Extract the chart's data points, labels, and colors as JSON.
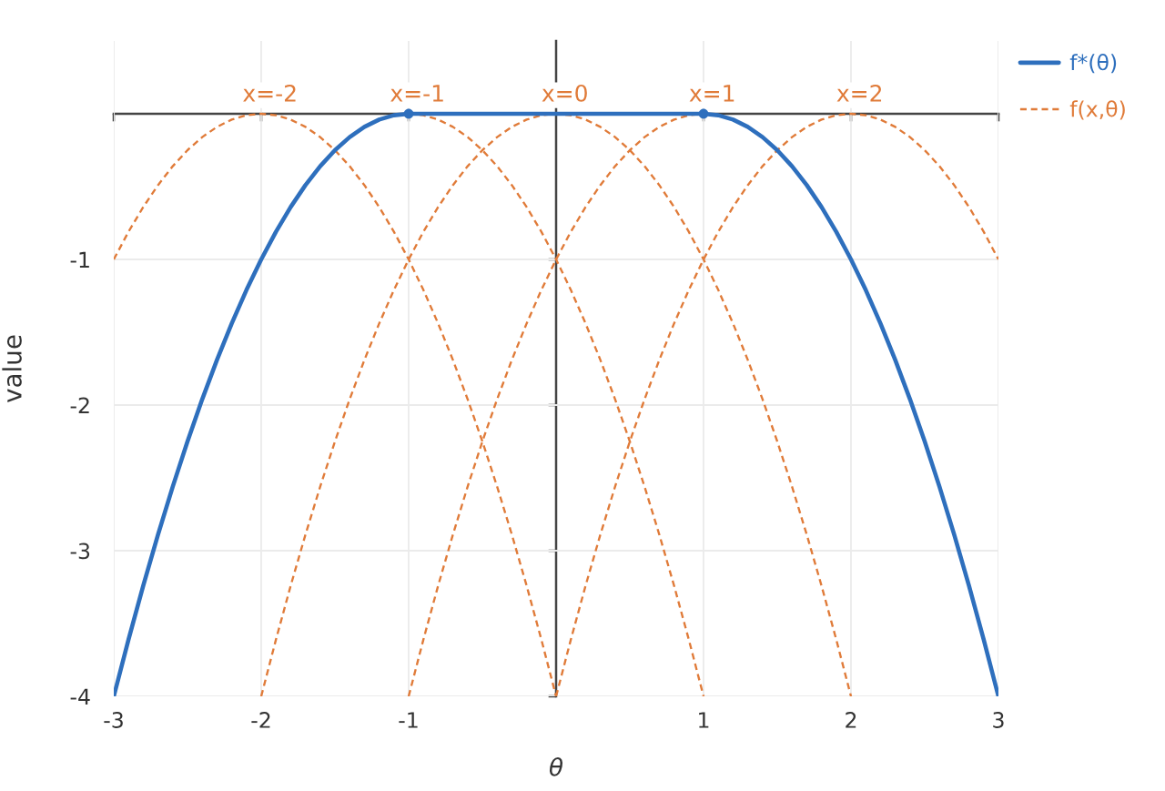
{
  "chart_data": {
    "type": "line",
    "xlabel": "θ",
    "ylabel": "value",
    "xlim": [
      -3,
      3
    ],
    "ylim": [
      -4,
      0.5
    ],
    "xticks": [
      -3,
      -2,
      -1,
      1,
      2,
      3
    ],
    "yticks": [
      -4,
      -3,
      -2,
      -1
    ],
    "grid": true,
    "legend": "top right",
    "series": [
      {
        "name": "f*(θ)",
        "color": "#2e6fbd",
        "line_style": "solid",
        "marker": "none",
        "x": [
          -3,
          -2.9,
          -2.8,
          -2.7,
          -2.6,
          -2.5,
          -2.4,
          -2.3,
          -2.2,
          -2.1,
          -2,
          -1.9,
          -1.8,
          -1.7,
          -1.6,
          -1.5,
          -1.4,
          -1.3,
          -1.2,
          -1.1,
          -1,
          1,
          1.1,
          1.2,
          1.3,
          1.4,
          1.5,
          1.6,
          1.7,
          1.8,
          1.9,
          2,
          2.1,
          2.2,
          2.3,
          2.4,
          2.5,
          2.6,
          2.7,
          2.8,
          2.9,
          3
        ],
        "values": [
          -4,
          -3.61,
          -3.24,
          -2.89,
          -2.56,
          -2.25,
          -1.96,
          -1.69,
          -1.44,
          -1.21,
          -1,
          -0.81,
          -0.64,
          -0.49,
          -0.36,
          -0.25,
          -0.16,
          -0.09,
          -0.04,
          -0.01,
          0,
          0,
          -0.01,
          -0.04,
          -0.09,
          -0.16,
          -0.25,
          -0.36,
          -0.49,
          -0.64,
          -0.81,
          -1,
          -1.21,
          -1.44,
          -1.69,
          -1.96,
          -2.25,
          -2.56,
          -2.89,
          -3.24,
          -3.61,
          -4
        ]
      },
      {
        "type": "scatter",
        "color": "#2e6fbd",
        "marker": "circle",
        "x": [
          -1,
          1
        ],
        "values": [
          0,
          0
        ]
      },
      {
        "name": "f(x,θ)",
        "color": "#e07b39",
        "line_style": "dashed",
        "marker": "none",
        "x": [
          -3,
          -2.9,
          -2.8,
          -2.7,
          -2.6,
          -2.5,
          -2.4,
          -2.3,
          -2.2,
          -2.1,
          -2,
          -1.9,
          -1.8,
          -1.7,
          -1.6,
          -1.5,
          -1.4,
          -1.3,
          -1.2,
          -1.1,
          -1,
          -0.9,
          -0.8,
          -0.7,
          -0.6,
          -0.5,
          -0.4,
          -0.3,
          -0.2,
          -0.1,
          0
        ],
        "values": [
          -1,
          -0.81,
          -0.64,
          -0.49,
          -0.36,
          -0.25,
          -0.16,
          -0.09,
          -0.04,
          -0.01,
          0,
          -0.01,
          -0.04,
          -0.09,
          -0.16,
          -0.25,
          -0.36,
          -0.49,
          -0.64,
          -0.81,
          -1,
          -1.21,
          -1.44,
          -1.69,
          -1.96,
          -2.25,
          -2.56,
          -2.89,
          -3.24,
          -3.61,
          -4
        ]
      },
      {
        "color": "#e07b39",
        "line_style": "dashed",
        "marker": "none",
        "x": [
          -1,
          -0.9,
          -0.8,
          -0.7,
          -0.6,
          -0.5,
          -0.4,
          -0.3,
          -0.2,
          -0.1,
          0,
          0.1,
          0.2,
          0.3,
          0.4,
          0.5,
          0.6,
          0.7,
          0.8,
          0.9,
          1
        ],
        "values": [
          0,
          -0.01,
          -0.04,
          -0.09,
          -0.16,
          -0.25,
          -0.36,
          -0.49,
          -0.64,
          -0.81,
          -1,
          -1.21,
          -1.44,
          -1.69,
          -1.96,
          -2.25,
          -2.56,
          -2.89,
          -3.24,
          -3.61,
          -4
        ]
      },
      {
        "color": "#e07b39",
        "line_style": "dashed",
        "marker": "none",
        "x": [
          -2,
          -1.9,
          -1.8,
          -1.7,
          -1.6,
          -1.5,
          -1.4,
          -1.3,
          -1.2,
          -1.1,
          -1,
          -0.9,
          -0.8,
          -0.7,
          -0.6,
          -0.5,
          -0.4,
          -0.3,
          -0.2,
          -0.1,
          0,
          0.1,
          0.2,
          0.3,
          0.4,
          0.5,
          0.6,
          0.7,
          0.8,
          0.9,
          1,
          1.1,
          1.2,
          1.3,
          1.4,
          1.5,
          1.6,
          1.7,
          1.8,
          1.9,
          2
        ],
        "values": [
          -4,
          -3.61,
          -3.24,
          -2.89,
          -2.56,
          -2.25,
          -1.96,
          -1.69,
          -1.44,
          -1.21,
          -1,
          -0.81,
          -0.64,
          -0.49,
          -0.36,
          -0.25,
          -0.16,
          -0.09,
          -0.04,
          -0.01,
          0,
          -0.01,
          -0.04,
          -0.09,
          -0.16,
          -0.25,
          -0.36,
          -0.49,
          -0.64,
          -0.81,
          -1,
          -1.21,
          -1.44,
          -1.69,
          -1.96,
          -2.25,
          -2.56,
          -2.89,
          -3.24,
          -3.61,
          -4
        ]
      },
      {
        "color": "#e07b39",
        "line_style": "dashed",
        "marker": "none",
        "x": [
          -1,
          -0.9,
          -0.8,
          -0.7,
          -0.6,
          -0.5,
          -0.4,
          -0.3,
          -0.2,
          -0.1,
          0,
          0.1,
          0.2,
          0.3,
          0.4,
          0.5,
          0.6,
          0.7,
          0.8,
          0.9,
          1
        ],
        "values": [
          -4,
          -3.61,
          -3.24,
          -2.89,
          -2.56,
          -2.25,
          -1.96,
          -1.69,
          -1.44,
          -1.21,
          -1,
          -0.81,
          -0.64,
          -0.49,
          -0.36,
          -0.25,
          -0.16,
          -0.09,
          -0.04,
          -0.01,
          0
        ]
      },
      {
        "color": "#e07b39",
        "line_style": "dashed",
        "marker": "none",
        "x": [
          0,
          0.1,
          0.2,
          0.3,
          0.4,
          0.5,
          0.6,
          0.7,
          0.8,
          0.9,
          1,
          1.1,
          1.2,
          1.3,
          1.4,
          1.5,
          1.6,
          1.7,
          1.8,
          1.9,
          2,
          2.1,
          2.2,
          2.3,
          2.4,
          2.5,
          2.6,
          2.7,
          2.8,
          2.9,
          3
        ],
        "values": [
          -4,
          -3.61,
          -3.24,
          -2.89,
          -2.56,
          -2.25,
          -1.96,
          -1.69,
          -1.44,
          -1.21,
          -1,
          -0.81,
          -0.64,
          -0.49,
          -0.36,
          -0.25,
          -0.16,
          -0.09,
          -0.04,
          -0.01,
          0,
          -0.01,
          -0.04,
          -0.09,
          -0.16,
          -0.25,
          -0.36,
          -0.49,
          -0.64,
          -0.81,
          -1
        ]
      }
    ],
    "annotations": [
      {
        "text": "x=-2",
        "x": -2,
        "y": 0
      },
      {
        "text": "x=-1",
        "x": -1,
        "y": 0
      },
      {
        "text": "x=0",
        "x": 0,
        "y": 0
      },
      {
        "text": "x=1",
        "x": 1,
        "y": 0
      },
      {
        "text": "x=2",
        "x": 2,
        "y": 0
      }
    ]
  }
}
